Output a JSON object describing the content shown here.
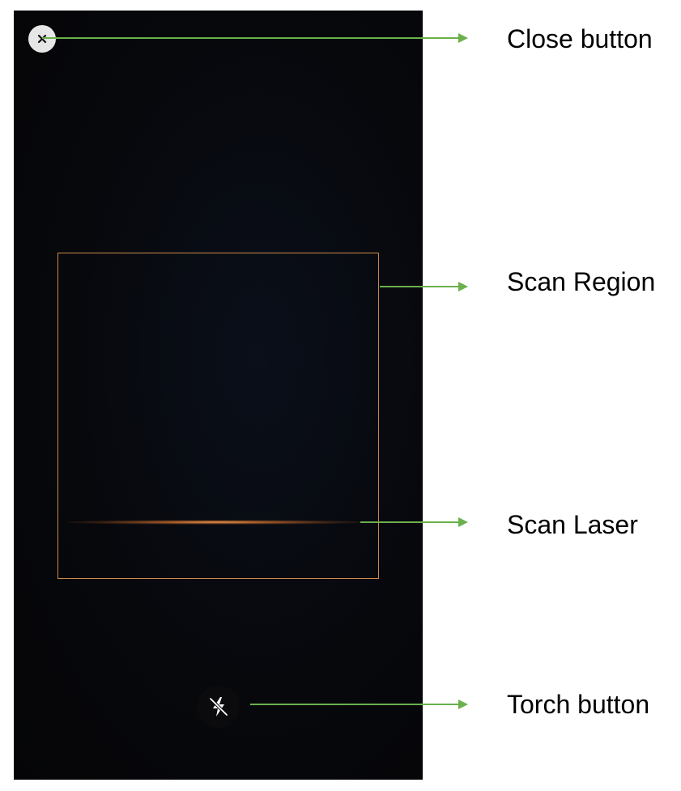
{
  "scanner": {
    "close_icon": "close-icon",
    "torch_icon": "flash-off-icon"
  },
  "callouts": {
    "close_button": "Close button",
    "scan_region": "Scan Region",
    "scan_laser": "Scan Laser",
    "torch_button": "Torch button"
  },
  "colors": {
    "screen_background": "#07080c",
    "scan_region_border": "#c98a4b",
    "scan_laser": "#e08a3c",
    "annotation_arrow": "#6ab04c",
    "close_button_bg": "#e6e6e6"
  }
}
